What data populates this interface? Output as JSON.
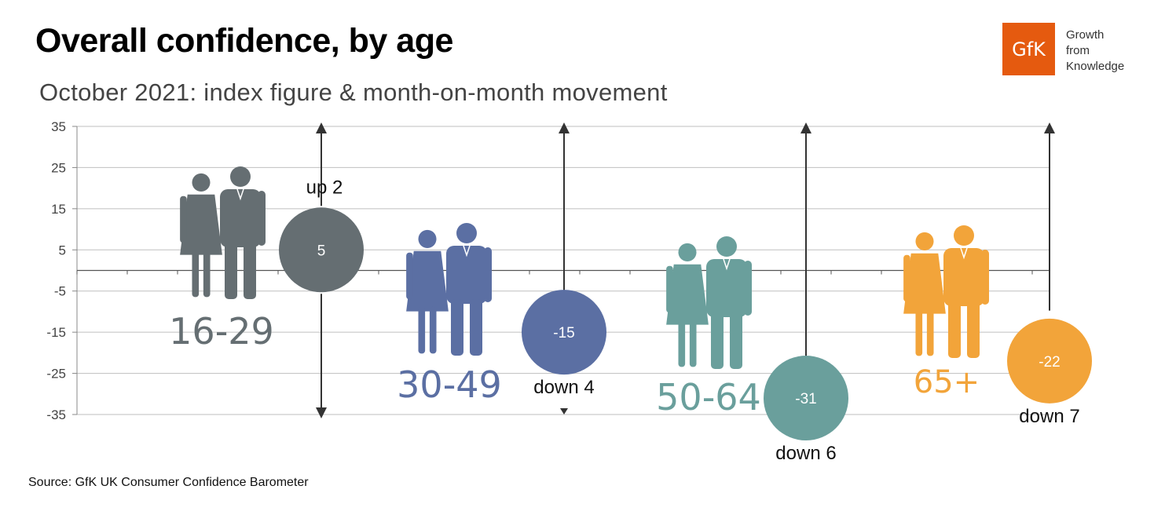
{
  "header": {
    "title": "Overall confidence, by age",
    "subtitle": "October 2021: index figure & month-on-month movement"
  },
  "logo": {
    "mark": "GfK",
    "lines": [
      "Growth",
      "from",
      "Knowledge"
    ]
  },
  "footer": {
    "source": "Source: GfK UK Consumer Confidence Barometer"
  },
  "colors": {
    "16-29": "#656e72",
    "30-49": "#5b6fa3",
    "50-64": "#6a9f9c",
    "65+": "#f2a43a",
    "grid": "#bfbfbf",
    "axis": "#333333"
  },
  "chart_data": {
    "type": "scatter",
    "ylim": [
      -35,
      35
    ],
    "yticks": [
      35,
      25,
      15,
      5,
      -5,
      -15,
      -25,
      -35
    ],
    "grid": true,
    "series": [
      {
        "name": "16-29",
        "value": 5,
        "value_label": "5",
        "movement": "up 2",
        "icon": "couple-icon"
      },
      {
        "name": "30-49",
        "value": -15,
        "value_label": "-15",
        "movement": "down 4",
        "icon": "couple-icon"
      },
      {
        "name": "50-64",
        "value": -31,
        "value_label": "-31",
        "movement": "down 6",
        "icon": "couple-icon"
      },
      {
        "name": "65+",
        "value": -22,
        "value_label": "-22",
        "movement": "down 7",
        "icon": "couple-icon"
      }
    ]
  }
}
